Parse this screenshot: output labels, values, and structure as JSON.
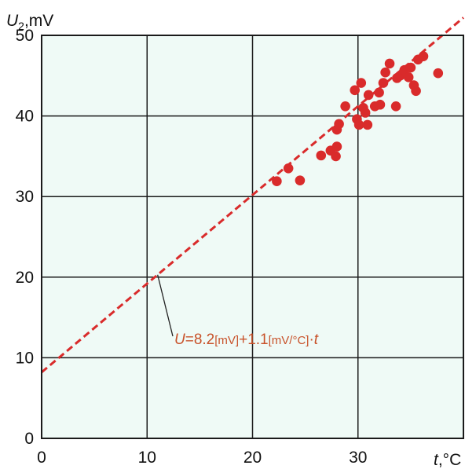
{
  "chart_data": {
    "type": "scatter",
    "ylabel_main": "U",
    "ylabel_sub": "2",
    "ylabel_unit": ",mV",
    "xlabel_main": "t",
    "xlabel_unit": ",°C",
    "xlim": [
      0,
      40
    ],
    "ylim": [
      0,
      50
    ],
    "x_ticks": [
      "0",
      "10",
      "20",
      "30"
    ],
    "y_ticks": [
      "0",
      "10",
      "20",
      "30",
      "40",
      "50"
    ],
    "grid": true,
    "plot_background": "#effaf6",
    "marker_color": "#d92b2b",
    "fit_color": "#d92b2b",
    "annotation_color": "#c8522a",
    "fit_line": {
      "intercept": 8.2,
      "slope": 1.1
    },
    "annotation": {
      "u": "U",
      "eq": "=8.2",
      "unit1": "[mV]",
      "plus": "+1.1",
      "unit2": "[mV/°C]",
      "dot": "·",
      "t": "t"
    },
    "points": [
      {
        "x": 22.3,
        "y": 31.9
      },
      {
        "x": 23.4,
        "y": 33.5
      },
      {
        "x": 24.5,
        "y": 32.0
      },
      {
        "x": 26.5,
        "y": 35.1
      },
      {
        "x": 27.4,
        "y": 35.7
      },
      {
        "x": 27.9,
        "y": 35.0
      },
      {
        "x": 28.0,
        "y": 36.2
      },
      {
        "x": 28.0,
        "y": 38.3
      },
      {
        "x": 28.2,
        "y": 39.0
      },
      {
        "x": 28.8,
        "y": 41.2
      },
      {
        "x": 29.7,
        "y": 43.2
      },
      {
        "x": 29.9,
        "y": 39.6
      },
      {
        "x": 30.1,
        "y": 38.9
      },
      {
        "x": 30.3,
        "y": 44.1
      },
      {
        "x": 30.5,
        "y": 41.0
      },
      {
        "x": 30.7,
        "y": 40.4
      },
      {
        "x": 30.9,
        "y": 38.9
      },
      {
        "x": 31.0,
        "y": 42.6
      },
      {
        "x": 31.6,
        "y": 41.2
      },
      {
        "x": 32.0,
        "y": 42.9
      },
      {
        "x": 32.1,
        "y": 41.4
      },
      {
        "x": 32.4,
        "y": 44.1
      },
      {
        "x": 32.6,
        "y": 45.4
      },
      {
        "x": 33.0,
        "y": 46.5
      },
      {
        "x": 33.6,
        "y": 41.2
      },
      {
        "x": 33.7,
        "y": 44.7
      },
      {
        "x": 34.0,
        "y": 45.0
      },
      {
        "x": 34.4,
        "y": 45.7
      },
      {
        "x": 34.8,
        "y": 44.8
      },
      {
        "x": 35.0,
        "y": 46.0
      },
      {
        "x": 35.3,
        "y": 43.8
      },
      {
        "x": 35.5,
        "y": 43.1
      },
      {
        "x": 35.7,
        "y": 47.0
      },
      {
        "x": 36.2,
        "y": 47.4
      },
      {
        "x": 37.6,
        "y": 45.3
      }
    ]
  }
}
